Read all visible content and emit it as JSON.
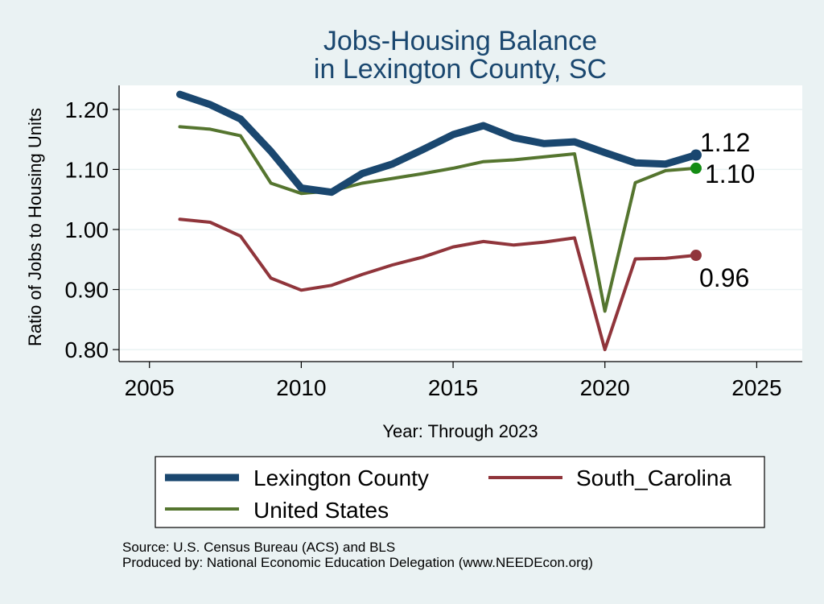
{
  "chart_data": {
    "type": "line",
    "title_lines": [
      "Jobs-Housing Balance",
      "in Lexington County, SC"
    ],
    "xlabel": "Year: Through 2023",
    "ylabel": "Ratio of Jobs to Housing Units",
    "xlim": [
      2004,
      2026.5
    ],
    "ylim": [
      0.78,
      1.24
    ],
    "x_ticks": [
      2005,
      2010,
      2015,
      2020,
      2025
    ],
    "x_tick_labels": [
      "2005",
      "2010",
      "2015",
      "2020",
      "2025"
    ],
    "y_ticks": [
      0.8,
      0.9,
      1.0,
      1.1,
      1.2
    ],
    "y_tick_labels": [
      "0.80",
      "0.90",
      "1.00",
      "1.10",
      "1.20"
    ],
    "grid": true,
    "legend_position": "bottom",
    "x": [
      2006,
      2007,
      2008,
      2009,
      2010,
      2011,
      2012,
      2013,
      2014,
      2015,
      2016,
      2017,
      2018,
      2019,
      2020,
      2021,
      2022,
      2023
    ],
    "series": [
      {
        "name": "Lexington County",
        "color": "#1a476f",
        "values": [
          1.225,
          1.208,
          1.184,
          1.13,
          1.069,
          1.062,
          1.093,
          1.109,
          1.133,
          1.158,
          1.173,
          1.153,
          1.143,
          1.146,
          1.128,
          1.111,
          1.109,
          1.124
        ],
        "end_label": "1.12"
      },
      {
        "name": "South_Carolina",
        "color": "#90353b",
        "values": [
          1.017,
          1.012,
          0.989,
          0.919,
          0.899,
          0.907,
          0.925,
          0.941,
          0.954,
          0.971,
          0.98,
          0.974,
          0.979,
          0.986,
          0.8,
          0.951,
          0.952,
          0.957
        ],
        "end_label": "0.96"
      },
      {
        "name": "United States",
        "color": "#55752f",
        "values": [
          1.171,
          1.167,
          1.156,
          1.077,
          1.06,
          1.064,
          1.077,
          1.085,
          1.093,
          1.102,
          1.113,
          1.116,
          1.121,
          1.126,
          0.864,
          1.078,
          1.098,
          1.102
        ],
        "end_label": "1.10"
      }
    ],
    "marker_colors": [
      "#1a476f",
      "#90353b",
      "#148c14"
    ],
    "notes": [
      "Source: U.S. Census Bureau (ACS) and BLS",
      "Produced by: National Economic Education Delegation (www.NEEDEcon.org)"
    ]
  }
}
